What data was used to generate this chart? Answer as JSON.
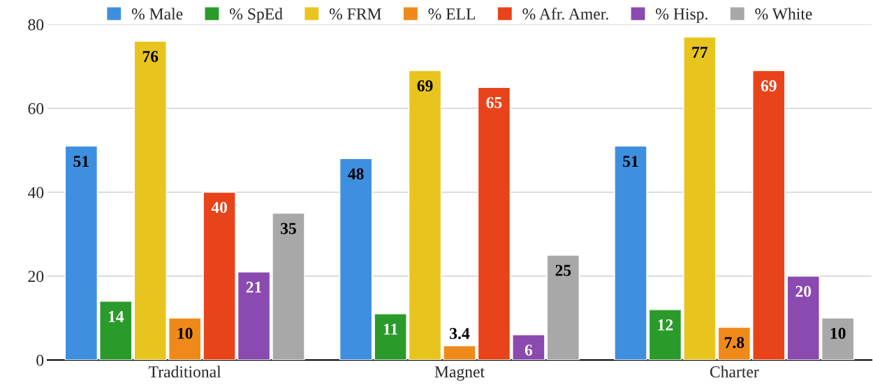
{
  "chart_data": {
    "type": "bar",
    "categories": [
      "Traditional",
      "Magnet",
      "Charter"
    ],
    "series": [
      {
        "name": "% Male",
        "color": "#3f8fe0",
        "values": [
          51,
          48,
          51
        ]
      },
      {
        "name": "% SpEd",
        "color": "#2a9a2a",
        "values": [
          14,
          11,
          12
        ]
      },
      {
        "name": "% FRM",
        "color": "#e8c51e",
        "values": [
          76,
          69,
          77
        ]
      },
      {
        "name": "% ELL",
        "color": "#ef8a1a",
        "values": [
          10,
          3.4,
          7.8
        ]
      },
      {
        "name": "% Afr. Amer.",
        "color": "#e8431a",
        "values": [
          40,
          65,
          69
        ]
      },
      {
        "name": "% Hisp.",
        "color": "#8a4ab0",
        "values": [
          21,
          6,
          20
        ]
      },
      {
        "name": "% White",
        "color": "#a8a8a8",
        "values": [
          35,
          25,
          10
        ]
      }
    ],
    "ylim": [
      0,
      80
    ],
    "yticks": [
      0,
      20,
      40,
      60,
      80
    ],
    "grid": "y",
    "legend": "top",
    "data_labels": true
  }
}
